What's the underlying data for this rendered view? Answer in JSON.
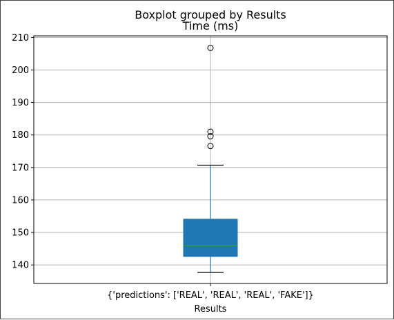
{
  "chart_data": {
    "type": "box",
    "suptitle": "Boxplot grouped by Results",
    "title": "Time (ms)",
    "xlabel": "Results",
    "ylabel": "",
    "categories": [
      "{'predictions': ['REAL', 'REAL', 'REAL', 'FAKE']}"
    ],
    "ylim": [
      134.3,
      210.5
    ],
    "yticks": [
      140,
      150,
      160,
      170,
      180,
      190,
      200,
      210
    ],
    "grid": true,
    "box": {
      "whisker_low": 137.7,
      "q1": 142.6,
      "median": 146.0,
      "q3": 154.1,
      "whisker_high": 170.7,
      "outliers": [
        176.6,
        179.6,
        181.0,
        206.8
      ]
    },
    "colors": {
      "box_fill": "#1f77b4",
      "median": "#2ca02c",
      "grid": "#b0b0b0"
    }
  }
}
